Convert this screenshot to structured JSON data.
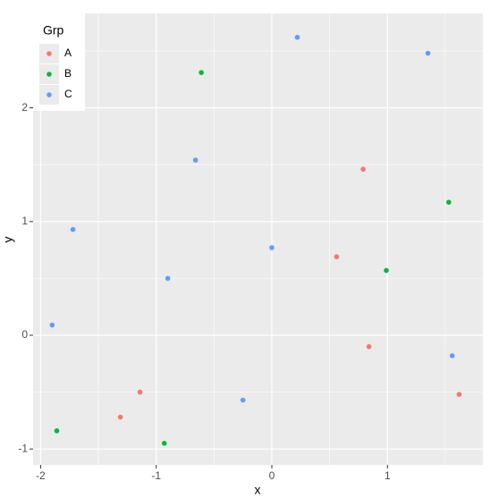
{
  "chart_data": {
    "type": "scatter",
    "xlabel": "x",
    "ylabel": "y",
    "legend_title": "Grp",
    "legend": "top-left",
    "grid": true,
    "xlim": [
      -2.065,
      1.825
    ],
    "ylim": [
      -1.14,
      2.83
    ],
    "xticks": [
      -2,
      -1,
      0,
      1
    ],
    "yticks": [
      -1,
      0,
      1,
      2
    ],
    "series": [
      {
        "name": "A",
        "color": "#F8766D",
        "x": [
          0.79,
          0.56,
          0.84,
          1.62,
          -1.14,
          -1.31
        ],
        "values": [
          1.46,
          0.69,
          -0.1,
          -0.52,
          -0.5,
          -0.72
        ]
      },
      {
        "name": "B",
        "color": "#00BA38",
        "x": [
          -0.61,
          1.53,
          0.99,
          -1.86,
          -0.93
        ],
        "values": [
          2.31,
          1.17,
          0.57,
          -0.84,
          -0.95
        ]
      },
      {
        "name": "C",
        "color": "#619CFF",
        "x": [
          0.22,
          1.35,
          -0.66,
          -1.72,
          0.0,
          -0.9,
          -1.9,
          1.56,
          -0.25
        ],
        "values": [
          2.62,
          2.48,
          1.54,
          0.93,
          0.77,
          0.5,
          0.09,
          -0.18,
          -0.57
        ]
      }
    ]
  }
}
